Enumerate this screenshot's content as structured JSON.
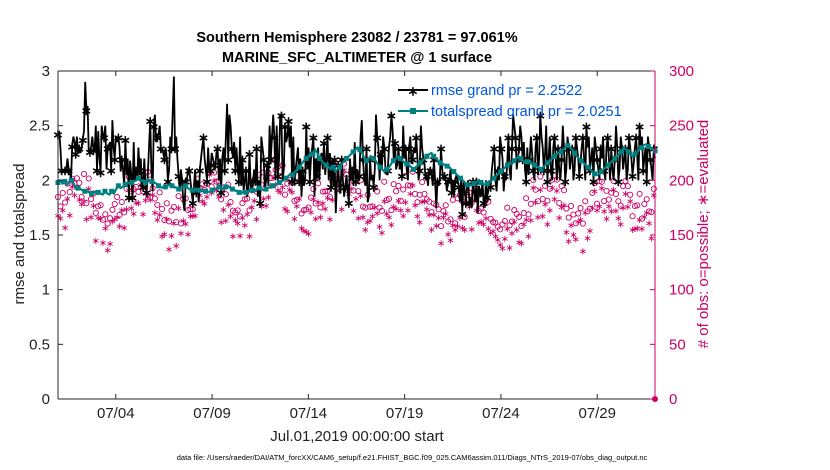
{
  "chart_data": {
    "type": "line",
    "title": "Southern Hemisphere 23082 / 23781 = 97.061%",
    "subtitle": "MARINE_SFC_ALTIMETER @ 1 surface",
    "xlabel": "Jul.01,2019 00:00:00 start",
    "ylabel_left": "rmse and totalspread",
    "ylabel_right": "# of obs: o=possible; ∗=evaluated",
    "footnote": "data file: /Users/raeder/DAI/ATM_forcXX/CAM6_setup/f.e21.FHIST_BGC.f09_025.CAM6assim.011/Diags_NTrS_2019-07/obs_diag_output.nc",
    "x_ticks": [
      {
        "label": "07/04",
        "day": 4
      },
      {
        "label": "07/09",
        "day": 9
      },
      {
        "label": "07/14",
        "day": 14
      },
      {
        "label": "07/19",
        "day": 19
      },
      {
        "label": "07/24",
        "day": 24
      },
      {
        "label": "07/29",
        "day": 29
      }
    ],
    "xlim": [
      1,
      32
    ],
    "ylim_left": [
      0,
      3
    ],
    "yticks_left": [
      "0",
      "0.5",
      "1",
      "1.5",
      "2",
      "2.5",
      "3"
    ],
    "ylim_right": [
      0,
      300
    ],
    "yticks_right": [
      "0",
      "50",
      "100",
      "150",
      "200",
      "250",
      "300"
    ],
    "legend_position": "top-right",
    "colors": {
      "rmse": "#000000",
      "spread": "#008080",
      "obs": "#cc0066",
      "legend_text": "#0055dd"
    },
    "series": [
      {
        "name": "rmse grand pr = 2.2522",
        "axis": "left",
        "values": [
          2.43,
          2.44,
          2.3,
          2.1,
          2.09,
          2.08,
          2.1,
          2.1,
          2.2,
          2.1,
          2.1,
          2.0,
          2.32,
          2.4,
          2.35,
          2.25,
          2.4,
          2.25,
          2.3,
          2.25,
          2.3,
          2.38,
          2.45,
          2.9,
          2.65,
          2.68,
          2.28,
          2.27,
          2.3,
          2.4,
          2.28,
          2.27,
          2.5,
          2.1,
          2.45,
          2.2,
          2.08,
          2.5,
          2.4,
          2.4,
          2.5,
          2.1,
          2.3,
          2.32,
          2.35,
          2.1,
          2.55,
          2.3,
          2.2,
          2.4,
          2.35,
          2.4,
          2.3,
          2.08,
          2.2,
          2.1,
          1.95,
          2.38,
          2.05,
          2.2,
          1.85,
          2.18,
          2.05,
          1.85,
          2.35,
          2.0,
          2.1,
          2.0,
          2.3,
          2.1,
          2.2,
          1.92,
          1.95,
          2.2,
          1.95,
          1.9,
          2.05,
          2.3,
          2.55,
          2.1,
          1.9,
          2.5,
          2.6,
          2.35,
          2.4,
          2.42,
          2.5,
          2.3,
          2.28,
          2.25,
          2.2,
          2.3,
          2.2,
          2.0,
          2.1,
          2.4,
          2.3,
          2.62,
          2.95,
          2.3,
          2.4,
          2.2,
          2.05,
          1.9,
          2.1,
          2.0,
          1.8,
          1.72,
          2.0,
          2.0,
          2.1,
          2.1,
          2.0,
          1.9,
          1.8,
          1.95,
          2.1,
          1.9,
          2.0,
          1.8,
          2.1,
          2.2,
          2.3,
          2.4,
          2.2,
          2.1,
          2.0,
          2.3,
          2.1,
          2.1,
          2.25,
          2.2,
          2.15,
          2.1,
          2.25,
          2.3,
          2.0,
          2.2,
          1.9,
          2.2,
          2.3,
          2.1,
          2.4,
          2.7,
          2.2,
          2.6,
          2.5,
          2.3,
          2.2,
          2.35,
          2.1,
          2.3,
          2.1,
          2.0,
          2.4,
          1.95,
          2.2,
          1.9,
          2.0,
          2.1,
          1.85,
          1.9,
          2.25,
          1.95,
          1.9,
          2.0,
          2.1,
          1.95,
          2.3,
          1.85,
          2.0,
          1.8,
          2.4,
          2.3,
          2.2,
          1.9,
          2.0,
          2.15,
          1.95,
          2.5,
          2.2,
          2.4,
          2.6,
          2.4,
          2.0,
          2.5,
          2.05,
          2.2,
          2.6,
          2.6,
          2.0,
          2.1,
          2.5,
          2.35,
          2.4,
          2.55,
          2.3,
          2.5,
          2.0,
          2.4,
          1.95,
          2.1,
          2.2,
          2.3,
          2.0,
          2.2,
          1.85,
          2.1,
          1.95,
          2.0,
          2.5,
          2.1,
          2.3,
          2.0,
          2.2,
          2.3,
          2.4,
          1.85,
          2.2,
          2.05,
          2.3,
          2.0,
          2.2,
          2.25,
          2.1,
          2.35,
          2.05,
          2.2,
          2.4,
          2.0,
          2.25,
          1.95,
          2.2,
          1.95,
          2.2,
          1.7,
          2.0,
          2.15,
          1.9,
          1.88,
          2.2,
          2.0,
          1.85,
          1.95,
          2.05,
          1.9,
          1.8,
          2.2,
          2.0,
          2.1,
          1.95,
          2.35,
          2.0,
          2.1,
          2.0,
          2.05,
          2.4,
          2.55,
          2.2,
          2.0,
          1.95,
          2.3,
          1.8,
          1.85,
          2.2,
          2.0,
          2.05,
          1.95,
          2.1,
          2.6,
          2.4,
          2.3,
          2.0,
          2.25,
          2.1,
          2.4,
          2.3,
          2.1,
          2.05,
          2.1,
          2.3,
          2.4,
          2.6,
          2.45,
          2.2,
          2.35,
          2.1,
          2.15,
          2.3,
          2.1,
          2.2,
          2.05,
          2.5,
          2.2,
          2.3,
          2.1,
          2.0,
          2.3,
          2.4,
          2.15,
          2.2,
          2.3,
          2.25,
          2.4,
          2.2,
          2.0,
          2.1,
          2.5,
          2.3,
          2.2,
          2.15,
          2.0,
          2.05,
          1.95,
          2.1,
          2.1,
          2.05,
          1.95,
          2.2,
          2.0,
          1.75,
          2.0,
          1.95,
          2.0,
          2.3,
          2.1,
          2.0,
          2.05,
          2.0,
          1.9,
          2.0,
          2.0,
          2.1,
          1.9,
          2.0,
          1.85,
          2.0,
          2.05,
          2.0,
          1.95,
          1.8,
          2.0,
          1.7,
          2.0,
          1.9,
          1.8,
          1.95,
          2.0,
          1.8,
          1.85,
          1.75,
          2.0,
          1.9,
          1.8,
          2.0,
          1.7,
          1.95,
          1.9,
          1.85,
          2.0,
          1.8,
          1.75,
          2.0,
          1.85,
          1.9,
          2.0,
          1.95,
          2.1,
          2.2,
          2.3,
          2.0,
          1.9,
          2.1,
          2.0,
          2.4,
          2.3,
          2.2,
          1.9,
          2.05,
          2.0,
          2.15,
          2.4,
          2.1,
          2.0,
          2.3,
          2.6,
          2.5,
          2.4,
          2.1,
          2.2,
          2.3,
          2.5,
          2.4,
          2.2,
          2.35,
          2.1,
          2.0,
          2.3,
          2.05,
          2.2,
          2.4,
          2.25,
          2.1,
          2.0,
          2.3,
          2.4,
          2.05,
          2.2,
          2.6,
          2.4,
          2.3,
          2.1,
          2.25,
          2.5,
          2.0,
          2.2,
          2.4,
          2.1,
          2.0,
          2.3,
          2.4,
          2.2,
          2.0,
          2.3,
          2.1,
          2.0,
          2.2,
          2.5,
          2.3,
          2.0,
          2.1,
          2.4,
          2.3,
          2.1,
          2.2,
          2.3,
          2.0,
          2.1,
          2.4,
          2.3,
          2.2,
          2.05,
          2.15,
          2.3,
          2.4,
          2.2,
          2.0,
          2.5,
          2.3,
          2.4,
          2.1,
          2.2,
          2.3,
          2.0,
          2.4,
          2.3,
          2.2,
          2.1,
          2.0,
          2.3,
          2.2,
          2.4,
          2.1,
          2.0,
          2.3,
          2.4,
          2.2,
          2.0,
          2.3,
          2.1,
          2.0,
          2.2,
          2.5,
          2.3,
          2.0,
          2.1,
          2.4,
          2.3,
          2.1,
          2.2,
          2.3,
          2.0,
          2.1,
          2.4,
          2.3,
          2.2,
          2.05,
          2.15,
          2.3,
          2.4,
          2.2,
          2.0,
          2.5,
          2.3,
          2.4,
          2.1,
          2.2,
          2.3,
          2.0,
          2.4,
          2.3,
          2.2,
          2.1,
          2.0,
          2.3,
          2.2
        ]
      },
      {
        "name": "totalspread grand pr = 2.0251",
        "axis": "left",
        "values": [
          1.98,
          2.0,
          1.97,
          1.99,
          1.96,
          1.98,
          2.0,
          1.97,
          1.93,
          1.93,
          1.92,
          1.91,
          1.9,
          1.9,
          1.89,
          1.88,
          1.88,
          1.9,
          1.89,
          1.88,
          1.87,
          1.9,
          1.88,
          1.87,
          1.9,
          1.88,
          1.92,
          1.95,
          1.93,
          1.94,
          1.96,
          1.98,
          1.97,
          1.98,
          1.99,
          2.0,
          2.02,
          1.99,
          2.0,
          1.98,
          2.01,
          2.0,
          1.99,
          1.98,
          1.97,
          1.95,
          1.94,
          1.93,
          1.94,
          1.95,
          1.96,
          1.95,
          1.94,
          1.93,
          1.92,
          1.93,
          1.94,
          1.95,
          1.93,
          1.92,
          1.91,
          1.9,
          1.92,
          1.91,
          1.9,
          1.91,
          1.9,
          1.89,
          1.9,
          1.91,
          1.92,
          1.93,
          1.94,
          1.92,
          1.93,
          1.94,
          1.95,
          1.93,
          1.92,
          1.91,
          1.9,
          1.89,
          1.88,
          1.9,
          1.89,
          1.9,
          1.92,
          1.91,
          1.9,
          1.92,
          1.93,
          1.92,
          1.91,
          1.92,
          1.93,
          1.94,
          1.95,
          1.96,
          1.97,
          1.98,
          1.99,
          2.0,
          2.02,
          2.04,
          2.06,
          2.05,
          2.08,
          2.1,
          2.12,
          2.15,
          2.18,
          2.2,
          2.22,
          2.25,
          2.24,
          2.28,
          2.25,
          2.2,
          2.18,
          2.15,
          2.14,
          2.12,
          2.1,
          2.12,
          2.08,
          2.1,
          2.12,
          2.15,
          2.18,
          2.2,
          2.22,
          2.24,
          2.26,
          2.28,
          2.3,
          2.28,
          2.25,
          2.2,
          2.18,
          2.2,
          2.22,
          2.2,
          2.18,
          2.15,
          2.12,
          2.1,
          2.08,
          2.1,
          2.12,
          2.15,
          2.18,
          2.2,
          2.22,
          2.2,
          2.18,
          2.16,
          2.15,
          2.14,
          2.12,
          2.1,
          2.12,
          2.14,
          2.16,
          2.18,
          2.2,
          2.22,
          2.24,
          2.25,
          2.22,
          2.2,
          2.18,
          2.16,
          2.15,
          2.14,
          2.13,
          2.12,
          2.1,
          2.08,
          2.06,
          2.04,
          2.02,
          2.0,
          1.98,
          1.96,
          1.95,
          1.96,
          1.97,
          1.98,
          2.0,
          1.98,
          1.97,
          1.96,
          1.97,
          1.98,
          2.0,
          2.02,
          2.04,
          2.06,
          2.08,
          2.1,
          2.12,
          2.14,
          2.16,
          2.15,
          2.18,
          2.2,
          2.22,
          2.2,
          2.18,
          2.16,
          2.17,
          2.18,
          2.15,
          2.14,
          2.13,
          2.12,
          2.1,
          2.12,
          2.14,
          2.16,
          2.18,
          2.2,
          2.22,
          2.24,
          2.25,
          2.26,
          2.28,
          2.3,
          2.32,
          2.3,
          2.28,
          2.25,
          2.22,
          2.2,
          2.18,
          2.16,
          2.14,
          2.12,
          2.1,
          2.08,
          2.06,
          2.05,
          2.06,
          2.08,
          2.1,
          2.12,
          2.14,
          2.16,
          2.18,
          2.2,
          2.22,
          2.24,
          2.26,
          2.3,
          2.28,
          2.26,
          2.24,
          2.22,
          2.24,
          2.26,
          2.28,
          2.3,
          2.32,
          2.33,
          2.31,
          2.3,
          2.28,
          2.27
        ]
      }
    ],
    "obs_possible_scale_note": "",
    "obs_evaluated_scale_note": ""
  }
}
